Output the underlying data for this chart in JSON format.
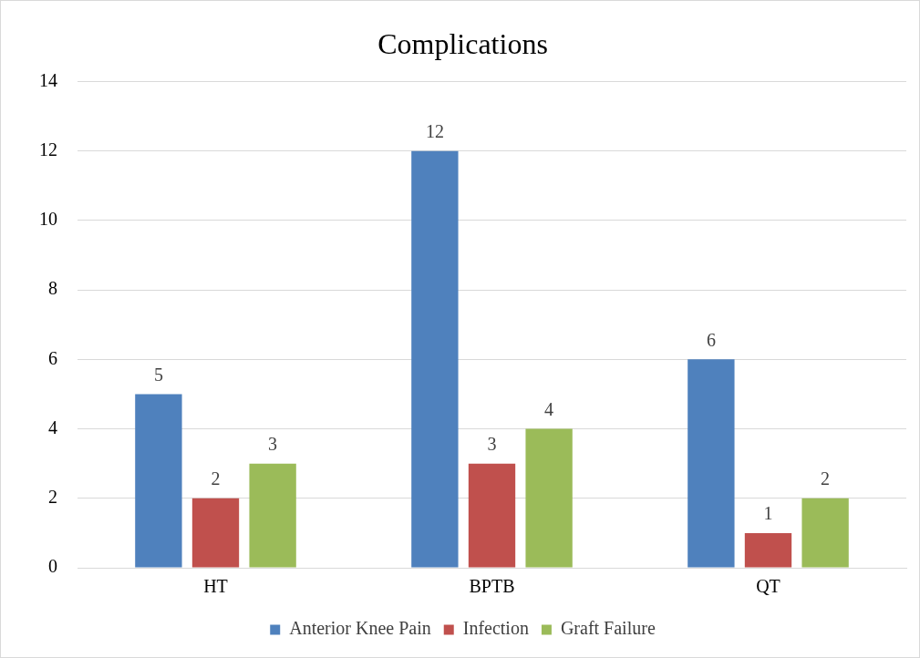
{
  "chart_data": {
    "type": "bar",
    "title": "Complications",
    "categories": [
      "HT",
      "BPTB",
      "QT"
    ],
    "series": [
      {
        "name": "Anterior Knee Pain",
        "color": "#4f81bd",
        "values": [
          5,
          12,
          6
        ]
      },
      {
        "name": "Infection",
        "color": "#c0504d",
        "values": [
          2,
          3,
          1
        ]
      },
      {
        "name": "Graft Failure",
        "color": "#9bbb59",
        "values": [
          3,
          4,
          2
        ]
      }
    ],
    "ylim": [
      0,
      14
    ],
    "yticks": [
      0,
      2,
      4,
      6,
      8,
      10,
      12,
      14
    ],
    "grid": "y",
    "legend": "bottom",
    "data_labels": true
  }
}
